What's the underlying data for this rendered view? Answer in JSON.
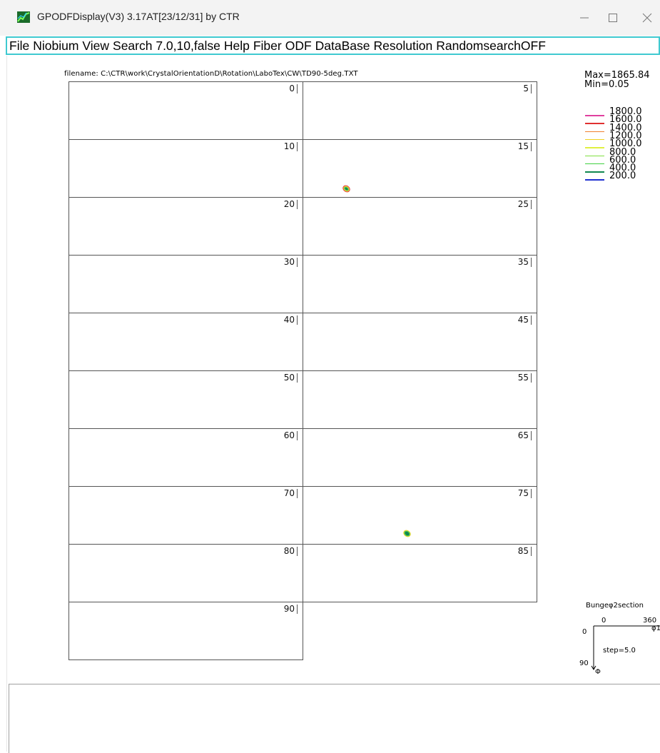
{
  "window": {
    "title": "GPODFDisplay(V3) 3.17AT[23/12/31] by CTR",
    "app_icon": "app-logo-icon",
    "controls": [
      "minimize-icon",
      "maximize-icon",
      "close-icon"
    ]
  },
  "menu": [
    "File",
    "Niobium",
    "View",
    "Search 7.0,10,false",
    "Help",
    "Fiber",
    "ODF",
    "DataBase",
    "Resolution",
    "RandomsearchOFF"
  ],
  "filename": "filename: C:\\CTR\\work\\CrystalOrientationD\\Rotation\\LaboTex\\CW\\TD90-5deg.TXT",
  "stats": {
    "max": "Max=1865.84",
    "min": "Min=0.05"
  },
  "legend": [
    {
      "value": "1800.0",
      "color": "#e0409f"
    },
    {
      "value": "1600.0",
      "color": "#e03030"
    },
    {
      "value": "1400.0",
      "color": "#f08030"
    },
    {
      "value": "1200.0",
      "color": "#f0d020"
    },
    {
      "value": "1000.0",
      "color": "#e0f040"
    },
    {
      "value": "800.0",
      "color": "#80e040"
    },
    {
      "value": "600.0",
      "color": "#40d040"
    },
    {
      "value": "400.0",
      "color": "#108850"
    },
    {
      "value": "200.0",
      "color": "#2030d0"
    }
  ],
  "sections": [
    "0",
    "5",
    "10",
    "15",
    "20",
    "25",
    "30",
    "35",
    "40",
    "45",
    "50",
    "55",
    "60",
    "65",
    "70",
    "75",
    "80",
    "85",
    "90"
  ],
  "peaks": [
    {
      "section": "15",
      "colors": [
        "#e03030",
        "#f0d020",
        "#40d040",
        "#108850"
      ]
    },
    {
      "section": "75",
      "colors": [
        "#f0d020",
        "#40d040",
        "#108850"
      ]
    }
  ],
  "section_key": {
    "title": "Bungeφ2section",
    "top_left": "0",
    "top_right": "360",
    "left_top": "0",
    "left_bottom": "90",
    "axis_x": "φ1",
    "axis_y": "Φ",
    "step": "step=5.0"
  }
}
